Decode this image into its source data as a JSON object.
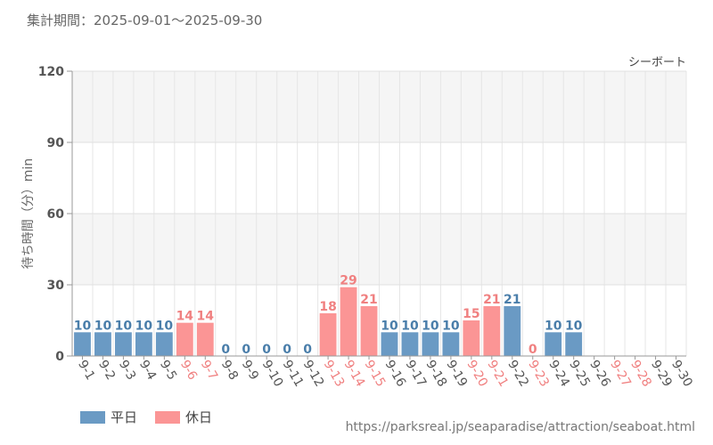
{
  "period_label": "集計期間：2025-09-01～2025-09-30",
  "source_url": "https://parksreal.jp/seaparadise/attraction/seaboat.html",
  "colors": {
    "weekday": "#6a9ac4",
    "holiday": "#fb9595",
    "weekday_label": "#4a7eaa",
    "holiday_label": "#f08080"
  },
  "legend": [
    {
      "label": "平日",
      "kind": "weekday"
    },
    {
      "label": "休日",
      "kind": "holiday"
    }
  ],
  "chart_data": {
    "type": "bar",
    "title": "シーボート",
    "xlabel": "",
    "ylabel": "待ち時間（分）min",
    "ylim": [
      0,
      120
    ],
    "yticks": [
      "0",
      "30",
      "60",
      "90",
      "120"
    ],
    "categories": [
      "9-1",
      "9-2",
      "9-3",
      "9-4",
      "9-5",
      "9-6",
      "9-7",
      "9-8",
      "9-9",
      "9-10",
      "9-11",
      "9-12",
      "9-13",
      "9-14",
      "9-15",
      "9-16",
      "9-17",
      "9-18",
      "9-19",
      "9-20",
      "9-21",
      "9-22",
      "9-23",
      "9-24",
      "9-25",
      "9-26",
      "9-27",
      "9-28",
      "9-29",
      "9-30"
    ],
    "values": [
      10,
      10,
      10,
      10,
      10,
      14,
      14,
      0,
      0,
      0,
      0,
      0,
      18,
      29,
      21,
      10,
      10,
      10,
      10,
      15,
      21,
      21,
      0,
      10,
      10,
      null,
      null,
      null,
      null,
      null
    ],
    "day_type": [
      "weekday",
      "weekday",
      "weekday",
      "weekday",
      "weekday",
      "holiday",
      "holiday",
      "weekday",
      "weekday",
      "weekday",
      "weekday",
      "weekday",
      "holiday",
      "holiday",
      "holiday",
      "weekday",
      "weekday",
      "weekday",
      "weekday",
      "holiday",
      "holiday",
      "weekday",
      "holiday",
      "weekday",
      "weekday",
      "weekday",
      "holiday",
      "holiday",
      "weekday",
      "weekday"
    ],
    "data_labels": [
      "10",
      "10",
      "10",
      "10",
      "10",
      "14",
      "14",
      "0",
      "0",
      "0",
      "0",
      "0",
      "18",
      "29",
      "21",
      "10",
      "10",
      "10",
      "10",
      "15",
      "21",
      "21",
      "0",
      "10",
      "10",
      "",
      "",
      "",
      "",
      ""
    ]
  }
}
